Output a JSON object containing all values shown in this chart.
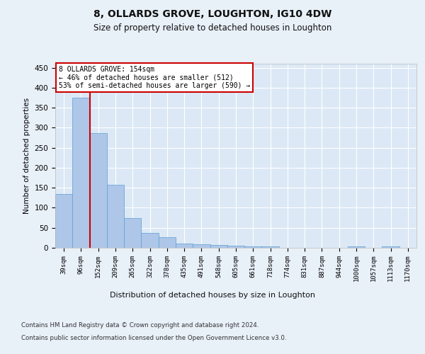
{
  "title1": "8, OLLARDS GROVE, LOUGHTON, IG10 4DW",
  "title2": "Size of property relative to detached houses in Loughton",
  "xlabel": "Distribution of detached houses by size in Loughton",
  "ylabel": "Number of detached properties",
  "categories": [
    "39sqm",
    "96sqm",
    "152sqm",
    "209sqm",
    "265sqm",
    "322sqm",
    "378sqm",
    "435sqm",
    "491sqm",
    "548sqm",
    "605sqm",
    "661sqm",
    "718sqm",
    "774sqm",
    "831sqm",
    "887sqm",
    "944sqm",
    "1000sqm",
    "1057sqm",
    "1113sqm",
    "1170sqm"
  ],
  "values": [
    135,
    375,
    287,
    158,
    75,
    38,
    27,
    10,
    8,
    7,
    5,
    4,
    4,
    0,
    0,
    0,
    0,
    4,
    0,
    4,
    0
  ],
  "bar_color": "#aec6e8",
  "bar_edge_color": "#5a9fd4",
  "background_color": "#e8f0f8",
  "plot_bg_color": "#dce8f5",
  "grid_color": "#ffffff",
  "vline_color": "#cc0000",
  "annotation_text": "8 OLLARDS GROVE: 154sqm\n← 46% of detached houses are smaller (512)\n53% of semi-detached houses are larger (590) →",
  "annotation_box_color": "#ffffff",
  "annotation_box_edge": "#cc0000",
  "ylim": [
    0,
    460
  ],
  "yticks": [
    0,
    50,
    100,
    150,
    200,
    250,
    300,
    350,
    400,
    450
  ],
  "footer1": "Contains HM Land Registry data © Crown copyright and database right 2024.",
  "footer2": "Contains public sector information licensed under the Open Government Licence v3.0."
}
